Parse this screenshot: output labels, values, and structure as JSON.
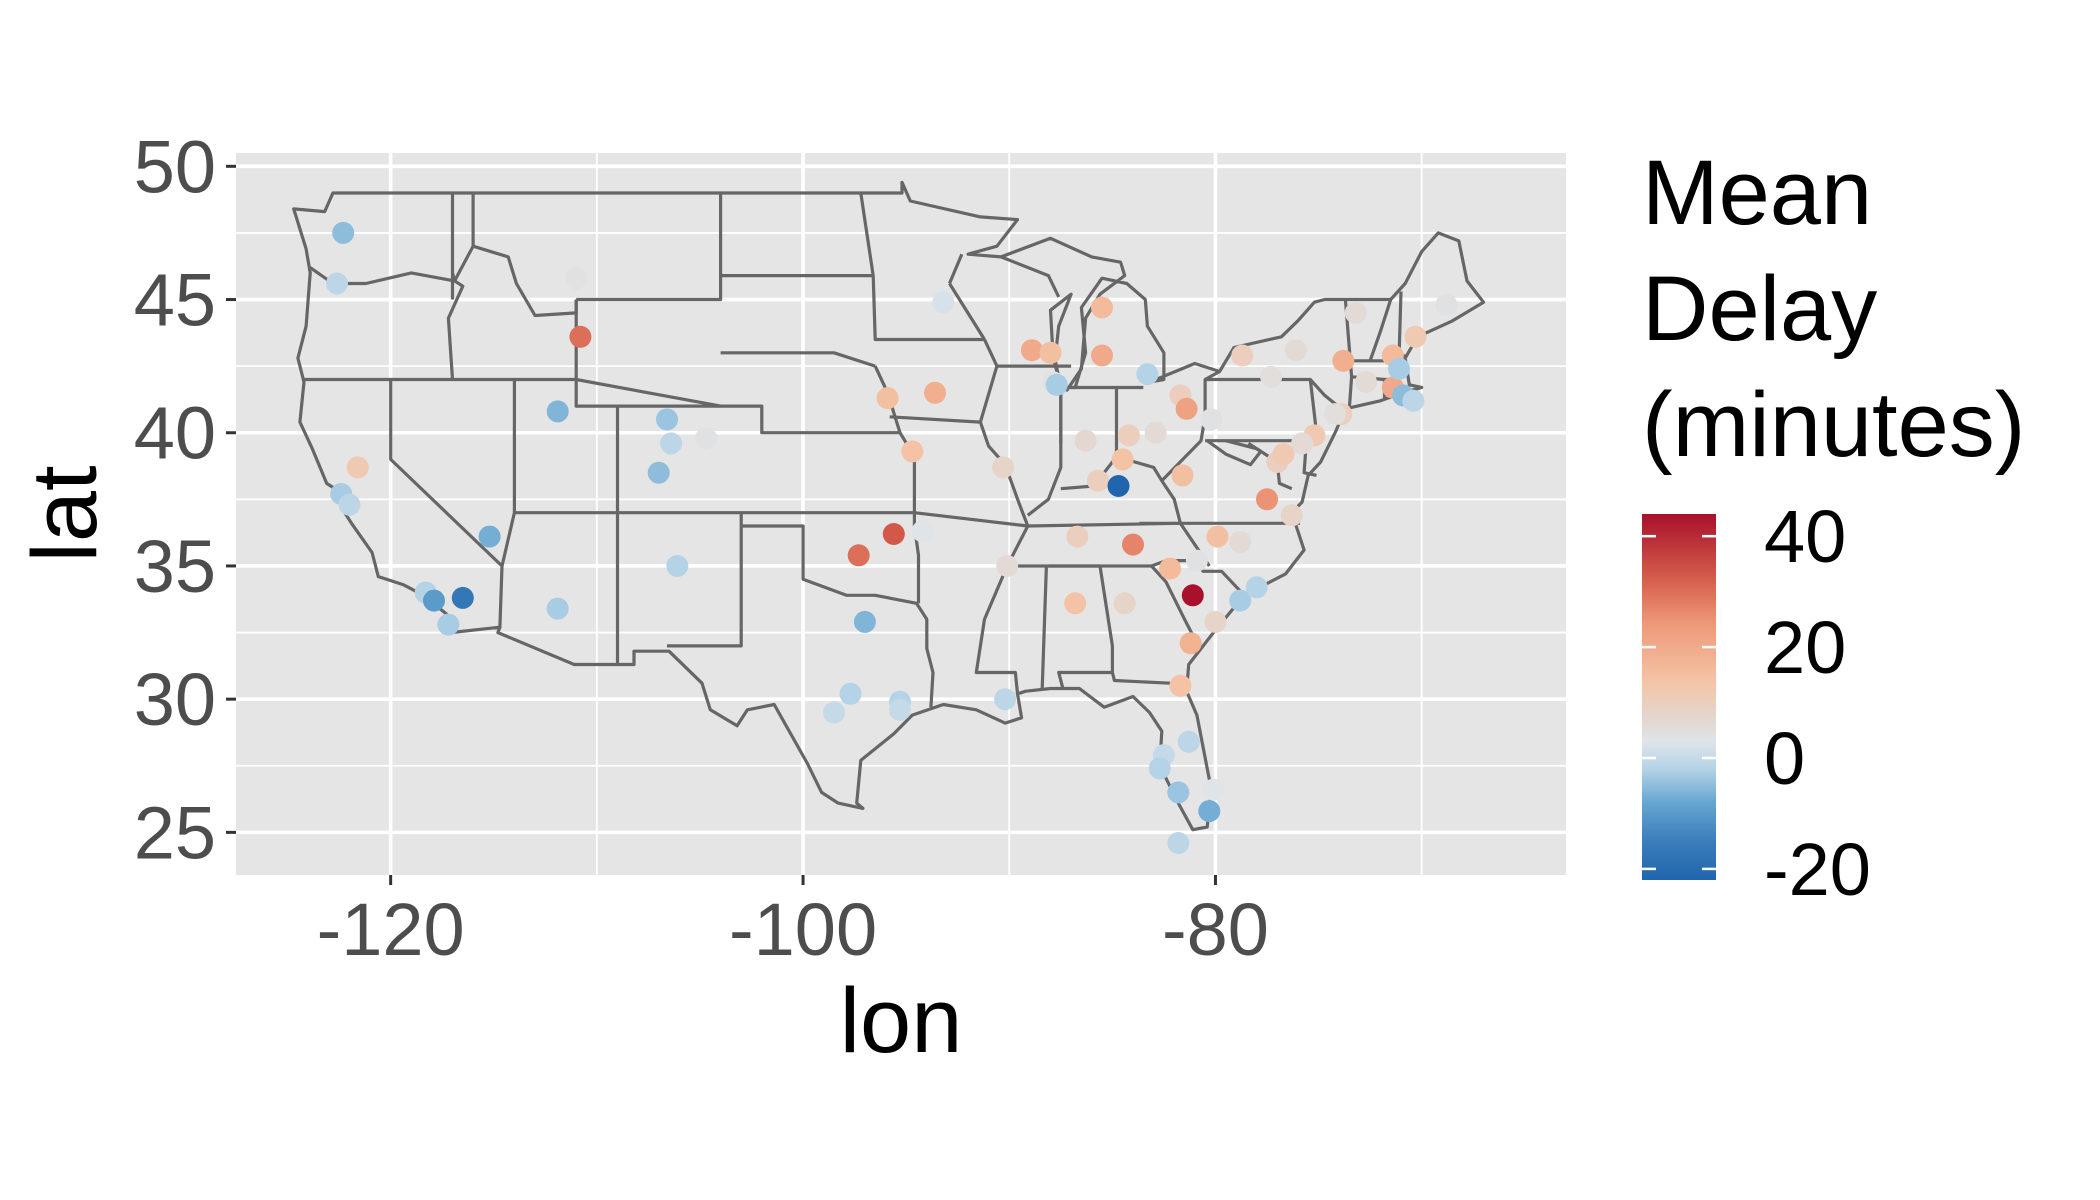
{
  "chart_data": {
    "type": "scatter",
    "title": "",
    "xlabel": "lon",
    "ylabel": "lat",
    "xlim": [
      -127.5,
      -63
    ],
    "ylim": [
      23.4,
      50.5
    ],
    "x_ticks": [
      {
        "value": -120,
        "label": "-120"
      },
      {
        "value": -100,
        "label": "-100"
      },
      {
        "value": -80,
        "label": "-80"
      }
    ],
    "y_ticks": [
      {
        "value": 25,
        "label": "25"
      },
      {
        "value": 30,
        "label": "30"
      },
      {
        "value": 35,
        "label": "35"
      },
      {
        "value": 40,
        "label": "40"
      },
      {
        "value": 45,
        "label": "45"
      },
      {
        "value": 50,
        "label": "50"
      }
    ],
    "grid": true,
    "panel_background": "#e5e5e5",
    "base_map": "contiguous US state boundaries",
    "legend": {
      "title_lines": [
        "Mean",
        "Delay",
        "(minutes)"
      ],
      "placement": "right",
      "type": "colorbar",
      "limits": [
        -22,
        44
      ],
      "ticks": [
        {
          "value": 40,
          "label": "40"
        },
        {
          "value": 20,
          "label": "20"
        },
        {
          "value": 0,
          "label": "0"
        },
        {
          "value": -20,
          "label": "-20"
        }
      ]
    },
    "color_scale": {
      "palette": "RdBu reversed",
      "stops": [
        {
          "value": -22,
          "color": "#2166ac"
        },
        {
          "value": -15,
          "color": "#3a7ebc"
        },
        {
          "value": -8,
          "color": "#67a6d0"
        },
        {
          "value": -2,
          "color": "#b4d3e7"
        },
        {
          "value": 3,
          "color": "#dfe4e9"
        },
        {
          "value": 7,
          "color": "#e4d7cf"
        },
        {
          "value": 14,
          "color": "#f4c3a5"
        },
        {
          "value": 24,
          "color": "#ee9a79"
        },
        {
          "value": 32,
          "color": "#d6604d"
        },
        {
          "value": 44,
          "color": "#a8102b"
        }
      ]
    },
    "series": [
      {
        "points": [
          {
            "x": -122.3,
            "y": 47.5,
            "delay": -5
          },
          {
            "x": -122.6,
            "y": 45.6,
            "delay": -1
          },
          {
            "x": -121.6,
            "y": 38.7,
            "delay": 12
          },
          {
            "x": -122.4,
            "y": 37.7,
            "delay": -3
          },
          {
            "x": -122.0,
            "y": 37.3,
            "delay": -1
          },
          {
            "x": -118.3,
            "y": 34.0,
            "delay": -2
          },
          {
            "x": -117.9,
            "y": 33.7,
            "delay": -10
          },
          {
            "x": -117.2,
            "y": 32.8,
            "delay": -3
          },
          {
            "x": -116.5,
            "y": 33.8,
            "delay": -17
          },
          {
            "x": -115.2,
            "y": 36.1,
            "delay": -7
          },
          {
            "x": -111.9,
            "y": 40.8,
            "delay": -6
          },
          {
            "x": -111.9,
            "y": 33.4,
            "delay": -3
          },
          {
            "x": -110.8,
            "y": 43.6,
            "delay": 30
          },
          {
            "x": -111.0,
            "y": 45.8,
            "delay": 4
          },
          {
            "x": -106.6,
            "y": 40.5,
            "delay": -4
          },
          {
            "x": -106.4,
            "y": 39.6,
            "delay": -1
          },
          {
            "x": -104.7,
            "y": 39.8,
            "delay": 4
          },
          {
            "x": -107.0,
            "y": 38.5,
            "delay": -5
          },
          {
            "x": -106.1,
            "y": 35.0,
            "delay": -2
          },
          {
            "x": -97.3,
            "y": 35.4,
            "delay": 30
          },
          {
            "x": -95.6,
            "y": 36.2,
            "delay": 33
          },
          {
            "x": -97.0,
            "y": 32.9,
            "delay": -6
          },
          {
            "x": -97.7,
            "y": 30.2,
            "delay": -2
          },
          {
            "x": -98.5,
            "y": 29.5,
            "delay": 0
          },
          {
            "x": -95.3,
            "y": 29.9,
            "delay": -2
          },
          {
            "x": -95.3,
            "y": 29.6,
            "delay": 0
          },
          {
            "x": -94.7,
            "y": 39.3,
            "delay": 14
          },
          {
            "x": -93.6,
            "y": 41.5,
            "delay": 19
          },
          {
            "x": -95.9,
            "y": 41.3,
            "delay": 15
          },
          {
            "x": -93.2,
            "y": 44.9,
            "delay": 2
          },
          {
            "x": -94.2,
            "y": 36.3,
            "delay": 3
          },
          {
            "x": -90.3,
            "y": 38.7,
            "delay": 8
          },
          {
            "x": -90.1,
            "y": 35.0,
            "delay": 6
          },
          {
            "x": -90.2,
            "y": 30.0,
            "delay": -1
          },
          {
            "x": -88.9,
            "y": 43.1,
            "delay": 20
          },
          {
            "x": -88.0,
            "y": 43.0,
            "delay": 15
          },
          {
            "x": -87.9,
            "y": 41.9,
            "delay": 4
          },
          {
            "x": -87.7,
            "y": 41.8,
            "delay": -3
          },
          {
            "x": -86.3,
            "y": 39.7,
            "delay": 7
          },
          {
            "x": -86.7,
            "y": 36.1,
            "delay": 10
          },
          {
            "x": -86.8,
            "y": 33.6,
            "delay": 14
          },
          {
            "x": -85.7,
            "y": 38.2,
            "delay": 10
          },
          {
            "x": -85.5,
            "y": 44.7,
            "delay": 16
          },
          {
            "x": -85.5,
            "y": 42.9,
            "delay": 20
          },
          {
            "x": -84.5,
            "y": 39.0,
            "delay": 14
          },
          {
            "x": -84.7,
            "y": 38.0,
            "delay": -22
          },
          {
            "x": -84.4,
            "y": 33.6,
            "delay": 8
          },
          {
            "x": -84.0,
            "y": 35.8,
            "delay": 27
          },
          {
            "x": -83.3,
            "y": 42.2,
            "delay": -2
          },
          {
            "x": -82.9,
            "y": 40.0,
            "delay": 6
          },
          {
            "x": -84.2,
            "y": 39.9,
            "delay": 10
          },
          {
            "x": -81.7,
            "y": 41.4,
            "delay": 10
          },
          {
            "x": -81.4,
            "y": 40.9,
            "delay": 22
          },
          {
            "x": -81.6,
            "y": 38.4,
            "delay": 15
          },
          {
            "x": -80.2,
            "y": 40.5,
            "delay": 4
          },
          {
            "x": -80.9,
            "y": 35.2,
            "delay": 4
          },
          {
            "x": -82.2,
            "y": 34.9,
            "delay": 16
          },
          {
            "x": -79.9,
            "y": 36.1,
            "delay": 15
          },
          {
            "x": -81.1,
            "y": 33.9,
            "delay": 44
          },
          {
            "x": -80.0,
            "y": 32.9,
            "delay": 8
          },
          {
            "x": -81.2,
            "y": 32.1,
            "delay": 18
          },
          {
            "x": -81.7,
            "y": 30.5,
            "delay": 14
          },
          {
            "x": -81.3,
            "y": 28.4,
            "delay": -1
          },
          {
            "x": -82.5,
            "y": 27.9,
            "delay": 0
          },
          {
            "x": -82.7,
            "y": 27.4,
            "delay": -2
          },
          {
            "x": -81.8,
            "y": 26.5,
            "delay": -4
          },
          {
            "x": -80.1,
            "y": 26.6,
            "delay": 3
          },
          {
            "x": -80.3,
            "y": 25.8,
            "delay": -7
          },
          {
            "x": -81.8,
            "y": 24.6,
            "delay": -1
          },
          {
            "x": -78.8,
            "y": 33.7,
            "delay": -3
          },
          {
            "x": -78.0,
            "y": 34.2,
            "delay": -2
          },
          {
            "x": -78.8,
            "y": 35.9,
            "delay": 6
          },
          {
            "x": -77.0,
            "y": 38.9,
            "delay": 10
          },
          {
            "x": -77.5,
            "y": 37.5,
            "delay": 25
          },
          {
            "x": -76.7,
            "y": 39.2,
            "delay": 12
          },
          {
            "x": -76.3,
            "y": 36.9,
            "delay": 8
          },
          {
            "x": -75.2,
            "y": 39.9,
            "delay": 12
          },
          {
            "x": -75.8,
            "y": 39.6,
            "delay": 6
          },
          {
            "x": -77.3,
            "y": 42.1,
            "delay": 5
          },
          {
            "x": -78.7,
            "y": 42.9,
            "delay": 10
          },
          {
            "x": -76.1,
            "y": 43.1,
            "delay": 6
          },
          {
            "x": -73.8,
            "y": 42.7,
            "delay": 19
          },
          {
            "x": -73.2,
            "y": 44.5,
            "delay": 6
          },
          {
            "x": -73.9,
            "y": 40.7,
            "delay": 10
          },
          {
            "x": -74.2,
            "y": 40.7,
            "delay": 5
          },
          {
            "x": -72.7,
            "y": 41.9,
            "delay": 6
          },
          {
            "x": -71.4,
            "y": 41.7,
            "delay": 20
          },
          {
            "x": -71.4,
            "y": 42.9,
            "delay": 16
          },
          {
            "x": -71.1,
            "y": 42.4,
            "delay": -3
          },
          {
            "x": -70.9,
            "y": 41.4,
            "delay": -5
          },
          {
            "x": -70.3,
            "y": 43.6,
            "delay": 12
          },
          {
            "x": -70.4,
            "y": 41.2,
            "delay": -1
          },
          {
            "x": -68.8,
            "y": 44.8,
            "delay": 4
          }
        ]
      }
    ]
  }
}
